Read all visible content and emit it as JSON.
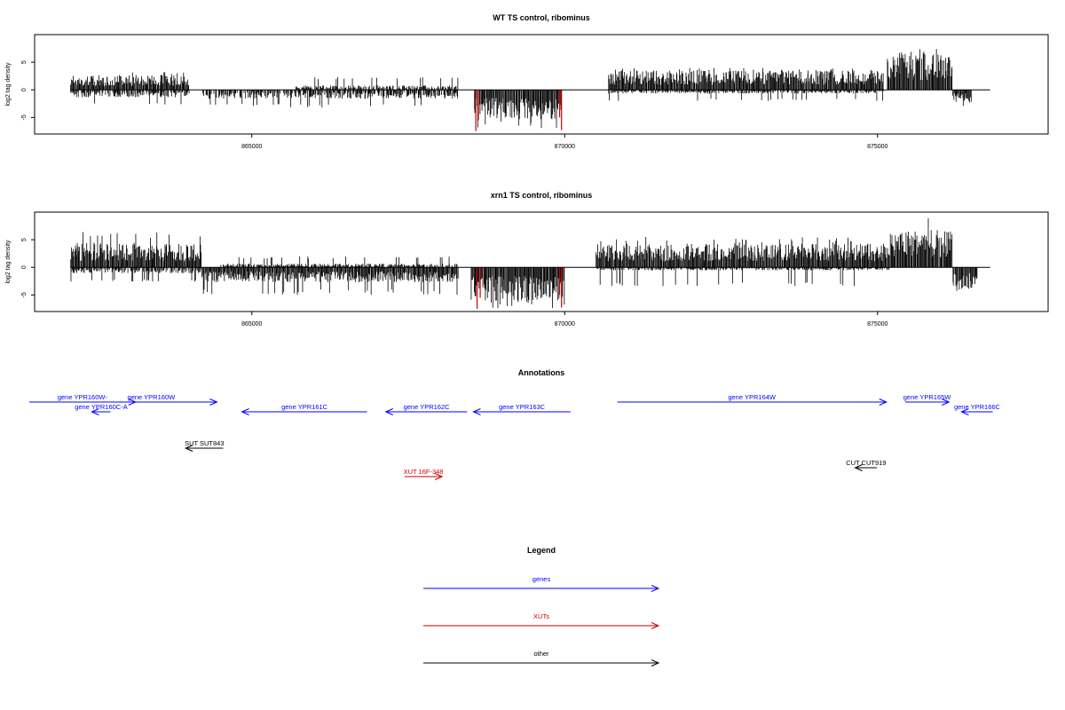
{
  "chart_data": [
    {
      "type": "bar",
      "title": "WT TS control, ribominus",
      "ylabel": "log2 tag density",
      "ylim": [
        -8,
        10
      ],
      "xlim": [
        861500,
        877500
      ],
      "yticks": [
        -5,
        0,
        5
      ],
      "xticks": [
        865000,
        870000,
        875000
      ],
      "xtick_labels": [
        "865000",
        "870000",
        "875000"
      ],
      "ytick_labels": [
        "-5",
        "0",
        "5"
      ],
      "bar_color": "#000000",
      "highlight_color": "#cc0000",
      "segments": [
        {
          "start": 862100,
          "end": 864000,
          "direction": "up",
          "mean": 2.0,
          "max": 3.2
        },
        {
          "start": 862100,
          "end": 864000,
          "direction": "down",
          "mean": 1.0,
          "max": 2.8
        },
        {
          "start": 864200,
          "end": 865500,
          "direction": "down",
          "mean": 1.2,
          "max": 3.0
        },
        {
          "start": 865500,
          "end": 868300,
          "direction": "down",
          "mean": 1.2,
          "max": 3.2
        },
        {
          "start": 865700,
          "end": 868300,
          "direction": "up",
          "mean": 0.6,
          "max": 2.4
        },
        {
          "start": 868550,
          "end": 869950,
          "direction": "down",
          "mean": 4.0,
          "max": 7.0
        },
        {
          "start": 870700,
          "end": 875100,
          "direction": "up",
          "mean": 2.6,
          "max": 4.0
        },
        {
          "start": 870700,
          "end": 875100,
          "direction": "down",
          "mean": 0.5,
          "max": 2.0
        },
        {
          "start": 875150,
          "end": 876200,
          "direction": "up",
          "mean": 4.8,
          "max": 7.5
        },
        {
          "start": 876200,
          "end": 876500,
          "direction": "down",
          "mean": 1.8,
          "max": 3.2
        }
      ],
      "highlights": [
        {
          "x": 868580,
          "value": -7.5
        },
        {
          "x": 868620,
          "value": -5.5
        },
        {
          "x": 869950,
          "value": -7.3
        },
        {
          "x": 869920,
          "value": -5.0
        }
      ]
    },
    {
      "type": "bar",
      "title": "xrn1 TS control, ribominus",
      "ylabel": "log2 tag density",
      "ylim": [
        -8,
        10
      ],
      "xlim": [
        861500,
        877500
      ],
      "yticks": [
        -5,
        0,
        5
      ],
      "xticks": [
        865000,
        870000,
        875000
      ],
      "xtick_labels": [
        "865000",
        "870000",
        "875000"
      ],
      "ytick_labels": [
        "-5",
        "0",
        "5"
      ],
      "bar_color": "#000000",
      "highlight_color": "#cc0000",
      "segments": [
        {
          "start": 862100,
          "end": 864200,
          "direction": "up",
          "mean": 3.3,
          "max": 6.5
        },
        {
          "start": 862100,
          "end": 864200,
          "direction": "down",
          "mean": 0.8,
          "max": 2.6
        },
        {
          "start": 864200,
          "end": 868300,
          "direction": "down",
          "mean": 2.0,
          "max": 5.0
        },
        {
          "start": 864500,
          "end": 868300,
          "direction": "up",
          "mean": 0.5,
          "max": 2.0
        },
        {
          "start": 868500,
          "end": 870000,
          "direction": "down",
          "mean": 4.5,
          "max": 7.5
        },
        {
          "start": 870500,
          "end": 875200,
          "direction": "up",
          "mean": 3.2,
          "max": 5.5
        },
        {
          "start": 870500,
          "end": 875200,
          "direction": "down",
          "mean": 0.4,
          "max": 3.4
        },
        {
          "start": 875200,
          "end": 876200,
          "direction": "up",
          "mean": 5.0,
          "max": 9.0
        },
        {
          "start": 876200,
          "end": 876600,
          "direction": "down",
          "mean": 3.0,
          "max": 4.5
        }
      ],
      "highlights": [
        {
          "x": 868600,
          "value": -7.5
        },
        {
          "x": 868650,
          "value": -5.5
        },
        {
          "x": 869950,
          "value": -7.3
        },
        {
          "x": 869920,
          "value": -5.0
        }
      ]
    }
  ],
  "annotations": {
    "title": "Annotations",
    "features": [
      {
        "label": "gene YPR160W-",
        "start": 861300,
        "end": 863000,
        "dir": "right",
        "row": 0,
        "color": "#0000ff"
      },
      {
        "label": "gene YPR160W",
        "start": 862200,
        "end": 864300,
        "dir": "right",
        "row": 0,
        "color": "#0000ff"
      },
      {
        "label": "gene YPR160C-A",
        "start": 862300,
        "end": 862600,
        "dir": "left",
        "row": 1,
        "color": "#0000ff"
      },
      {
        "label": "gene YPR161C",
        "start": 864700,
        "end": 866700,
        "dir": "left",
        "row": 1,
        "color": "#0000ff"
      },
      {
        "label": "gene YPR162C",
        "start": 867000,
        "end": 868300,
        "dir": "left",
        "row": 1,
        "color": "#0000ff"
      },
      {
        "label": "gene YPR163C",
        "start": 868400,
        "end": 869950,
        "dir": "left",
        "row": 1,
        "color": "#0000ff"
      },
      {
        "label": "gene YPR164W",
        "start": 870700,
        "end": 875000,
        "dir": "right",
        "row": 0,
        "color": "#0000ff"
      },
      {
        "label": "gene YPR165W",
        "start": 875300,
        "end": 876000,
        "dir": "right",
        "row": 0,
        "color": "#0000ff"
      },
      {
        "label": "gene YPR166C",
        "start": 876200,
        "end": 876700,
        "dir": "left",
        "row": 1,
        "color": "#0000ff"
      },
      {
        "label": "SUT SUT843",
        "start": 863800,
        "end": 864400,
        "dir": "left",
        "row": 2,
        "color": "#000000"
      },
      {
        "label": "CUT CUT919",
        "start": 874500,
        "end": 874850,
        "dir": "left",
        "row": 3,
        "color": "#000000"
      },
      {
        "label": "XUT 16F-348",
        "start": 867300,
        "end": 867900,
        "dir": "right",
        "row": 4,
        "color": "#cc0000"
      }
    ]
  },
  "legend": {
    "title": "Legend",
    "items": [
      {
        "label": "genes",
        "color": "#0000ff"
      },
      {
        "label": "XUTs",
        "color": "#cc0000"
      },
      {
        "label": "other",
        "color": "#000000"
      }
    ]
  }
}
